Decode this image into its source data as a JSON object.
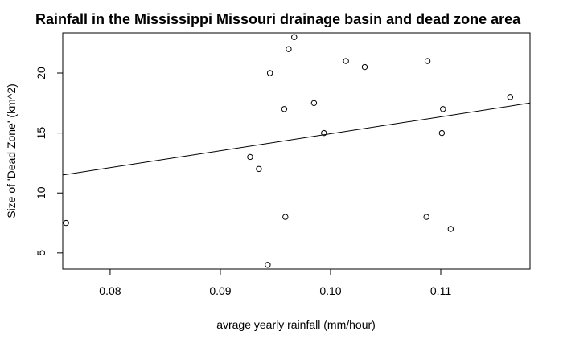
{
  "chart_data": {
    "type": "scatter",
    "title": "Rainfall in the Mississippi Missouri drainage basin and dead zone area",
    "xlabel": "avrage yearly rainfall (mm/hour)",
    "ylabel": "Size of 'Dead Zone' (km^2)",
    "xlim": [
      0.0757,
      0.1181
    ],
    "ylim": [
      3.65,
      23.35
    ],
    "xticks": [
      0.08,
      0.09,
      0.1,
      0.11
    ],
    "xtick_labels": [
      "0.08",
      "0.09",
      "0.10",
      "0.11"
    ],
    "yticks": [
      5,
      10,
      15,
      20
    ],
    "ytick_labels": [
      "5",
      "10",
      "15",
      "20"
    ],
    "grid": false,
    "legend": "none",
    "points": [
      {
        "x": 0.076,
        "y": 7.5
      },
      {
        "x": 0.0927,
        "y": 13.0
      },
      {
        "x": 0.0935,
        "y": 12.0
      },
      {
        "x": 0.0943,
        "y": 4.0
      },
      {
        "x": 0.0945,
        "y": 20.0
      },
      {
        "x": 0.0958,
        "y": 17.0
      },
      {
        "x": 0.0959,
        "y": 8.0
      },
      {
        "x": 0.0962,
        "y": 22.0
      },
      {
        "x": 0.0967,
        "y": 23.0
      },
      {
        "x": 0.0985,
        "y": 17.5
      },
      {
        "x": 0.0994,
        "y": 15.0
      },
      {
        "x": 0.1014,
        "y": 21.0
      },
      {
        "x": 0.1031,
        "y": 20.5
      },
      {
        "x": 0.1087,
        "y": 8.0
      },
      {
        "x": 0.1088,
        "y": 21.0
      },
      {
        "x": 0.1101,
        "y": 15.0
      },
      {
        "x": 0.1102,
        "y": 17.0
      },
      {
        "x": 0.1109,
        "y": 7.0
      },
      {
        "x": 0.1163,
        "y": 18.0
      }
    ],
    "fit_line": {
      "x": [
        0.0757,
        0.1181
      ],
      "y": [
        11.5,
        17.5
      ]
    }
  }
}
